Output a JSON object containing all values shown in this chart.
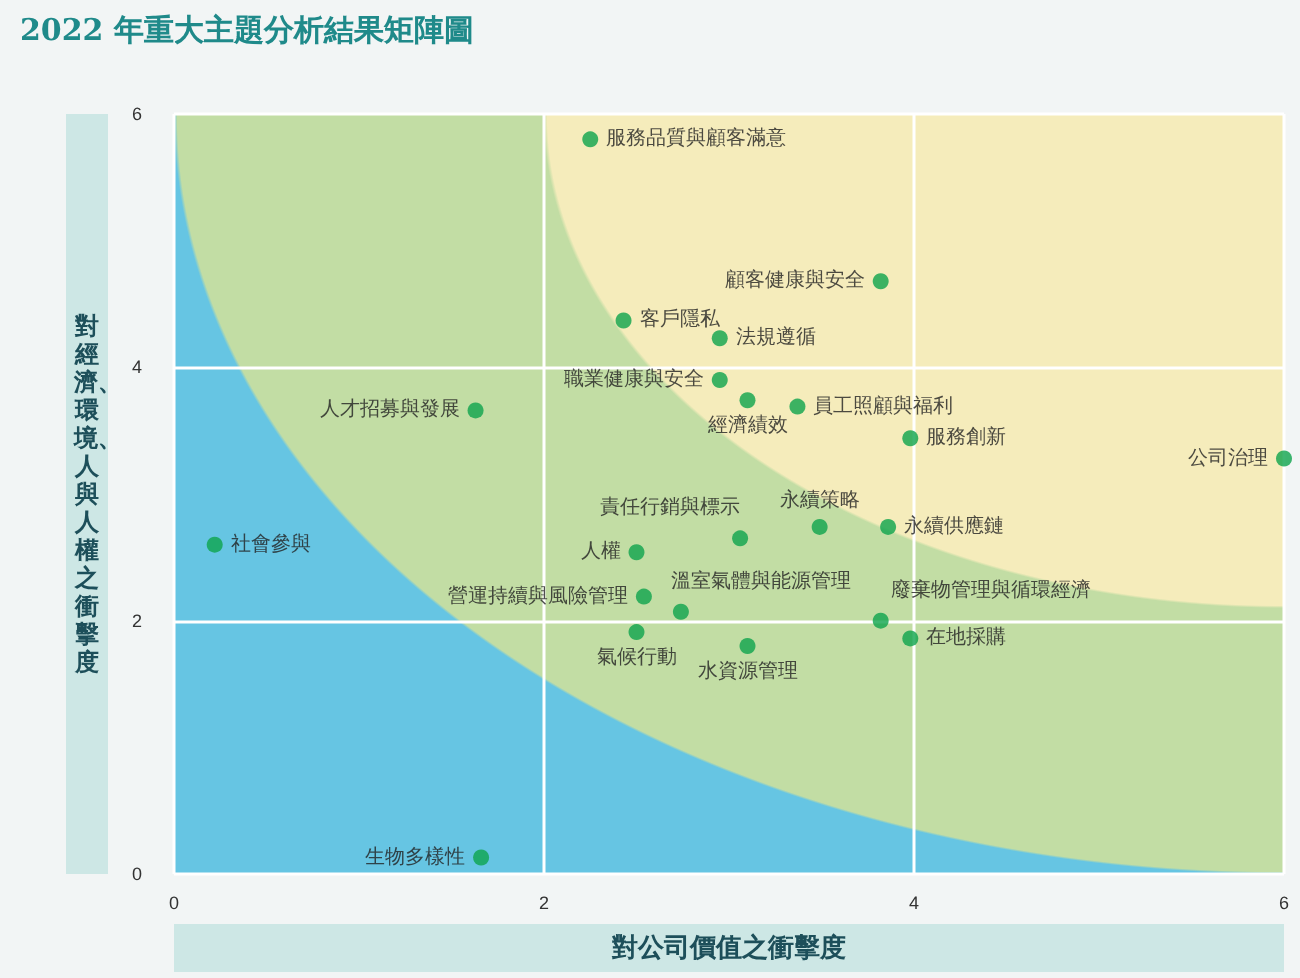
{
  "chart_data": {
    "type": "scatter",
    "title": "2022 年重大主題分析結果矩陣圖",
    "xlabel": "對公司價值之衝擊度",
    "ylabel": "對經濟、環境、人與人權之衝擊度",
    "x": [
      2.25,
      3.82,
      2.43,
      2.95,
      2.95,
      3.1,
      3.37,
      3.98,
      6.0,
      1.63,
      0.22,
      3.06,
      3.49,
      3.86,
      2.5,
      2.54,
      2.74,
      2.5,
      3.1,
      3.82,
      3.98,
      1.66
    ],
    "values": [
      5.8,
      4.68,
      4.37,
      4.23,
      3.9,
      3.74,
      3.69,
      3.44,
      3.28,
      3.66,
      2.6,
      2.65,
      2.74,
      2.74,
      2.54,
      2.19,
      2.07,
      1.91,
      1.8,
      2.0,
      1.86,
      0.13
    ],
    "value_labels": [
      "服務品質與顧客滿意",
      "顧客健康與安全",
      "客戶隱私",
      "法規遵循",
      "職業健康與安全",
      "經濟績效",
      "員工照顧與福利",
      "服務創新",
      "公司治理",
      "人才招募與發展",
      "社會參與",
      "責任行銷與標示",
      "永續策略",
      "永續供應鏈",
      "人權",
      "營運持續與風險管理",
      "溫室氣體與能源管理",
      "氣候行動",
      "水資源管理",
      "廢棄物管理與循環經濟",
      "在地採購",
      "生物多樣性"
    ],
    "color": "#0ea44c",
    "marker": "circle",
    "xlim": [
      0,
      6
    ],
    "xticks": [
      0,
      2,
      4,
      6
    ],
    "ylim": [
      0,
      6
    ],
    "yticks": [
      0,
      2,
      4,
      6
    ],
    "grid": true
  }
}
